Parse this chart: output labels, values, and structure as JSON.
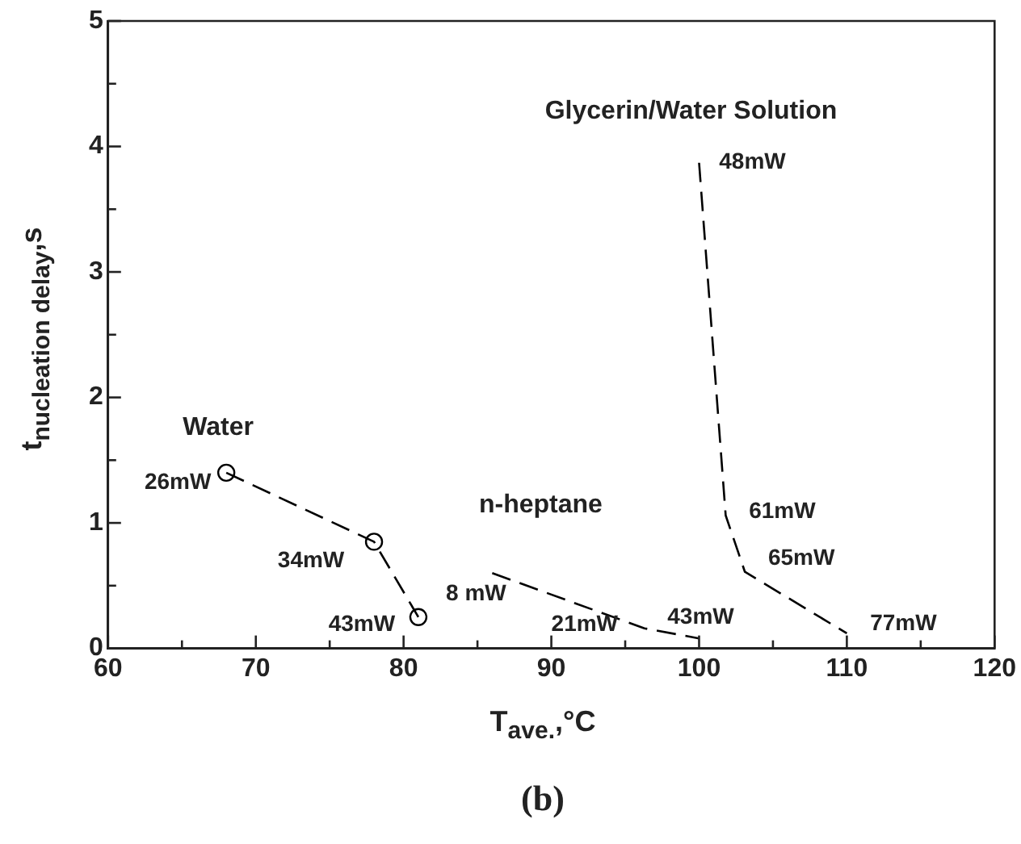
{
  "chart_data": {
    "type": "line",
    "xlabel": "T$_{ave.}$,°C",
    "ylabel": "t$_{nucleation delay}$,s",
    "xlim": [
      60,
      120
    ],
    "xticks": [
      60,
      {
        "value": 65,
        "label": null
      },
      70,
      {
        "value": 75,
        "label": null
      },
      80,
      {
        "value": 85,
        "label": null
      },
      90,
      {
        "value": 95,
        "label": null
      },
      100,
      {
        "value": 105,
        "label": null
      },
      110,
      {
        "value": 115,
        "label": null
      },
      120
    ],
    "ylim": [
      0,
      5
    ],
    "yticks": [
      0,
      {
        "value": 0.5,
        "label": null
      },
      1,
      {
        "value": 1.5,
        "label": null
      },
      2,
      {
        "value": 2.5,
        "label": null
      },
      3,
      {
        "value": 3.5,
        "label": null
      },
      4,
      {
        "value": 4.5,
        "label": null
      },
      5
    ],
    "grid": false,
    "legend": false,
    "line_style": "dashed",
    "series": [
      {
        "name": "Water",
        "color": "#000000",
        "marker": "circle",
        "x": [
          68,
          78,
          81
        ],
        "values": [
          1.4,
          0.85,
          0.25
        ]
      },
      {
        "name": "n-heptane",
        "color": "#000000",
        "marker": "none",
        "x": [
          86,
          96.3,
          100
        ],
        "values": [
          0.6,
          0.16,
          0.08
        ]
      },
      {
        "name": "Glycerin/Water Solution",
        "color": "#000000",
        "marker": "none",
        "x": [
          100,
          101.8,
          103.1,
          110
        ],
        "values": [
          3.87,
          1.06,
          0.61,
          0.12
        ]
      }
    ],
    "annotations": [
      {
        "text": "26mW",
        "x": 68,
        "y": 1.4
      },
      {
        "text": "34mW",
        "x": 78,
        "y": 0.85
      },
      {
        "text": "43mW",
        "x": 81,
        "y": 0.25
      },
      {
        "text": "8 mW",
        "x": 86,
        "y": 0.6
      },
      {
        "text": "21mW",
        "x": 96.3,
        "y": 0.16
      },
      {
        "text": "43mW",
        "x": 100,
        "y": 0.08
      },
      {
        "text": "48mW",
        "x": 100,
        "y": 3.87
      },
      {
        "text": "61mW",
        "x": 101.8,
        "y": 1.06
      },
      {
        "text": "65mW",
        "x": 103.1,
        "y": 0.61
      },
      {
        "text": "77mW",
        "x": 110,
        "y": 0.12
      },
      "(b)"
    ]
  }
}
